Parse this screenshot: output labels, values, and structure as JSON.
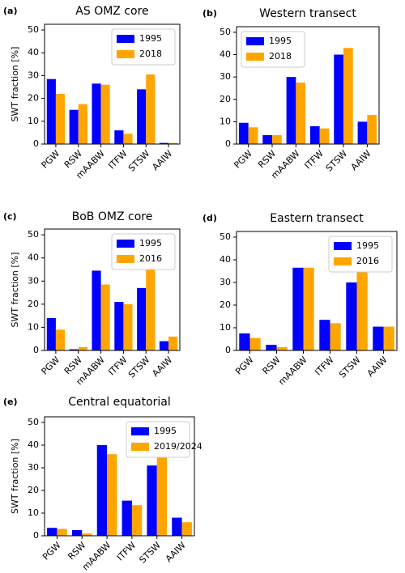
{
  "chart_data": [
    {
      "type": "bar",
      "label": "(a)",
      "title": "AS OMZ core",
      "y_label": "SWT fraction [%]",
      "categories": [
        "PGW",
        "RSW",
        "mAABW",
        "ITFW",
        "STSW",
        "AAIW"
      ],
      "series": [
        {
          "name": "1995",
          "color": "#0000ff",
          "values": [
            28.5,
            15,
            26.5,
            6,
            24,
            0.5
          ]
        },
        {
          "name": "2018",
          "color": "#ffa500",
          "values": [
            22,
            17.5,
            26,
            4.5,
            30.5,
            0.5
          ]
        }
      ],
      "ylim": [
        0,
        52.5
      ],
      "yticks": [
        0,
        10,
        20,
        30,
        40,
        50
      ],
      "legend": "upper right"
    },
    {
      "type": "bar",
      "label": "(b)",
      "title": "Western transect",
      "categories": [
        "PGW",
        "RSW",
        "mAABW",
        "ITFW",
        "STSW",
        "AAIW"
      ],
      "series": [
        {
          "name": "1995",
          "color": "#0000ff",
          "values": [
            9.5,
            4,
            30,
            8,
            40,
            10
          ]
        },
        {
          "name": "2018",
          "color": "#ffa500",
          "values": [
            7.5,
            4,
            27.5,
            7,
            43,
            13
          ]
        }
      ],
      "ylim": [
        0,
        52.5
      ],
      "yticks": [
        0,
        10,
        20,
        30,
        40,
        50
      ],
      "legend": "upper left"
    },
    {
      "type": "bar",
      "label": "(c)",
      "title": "BoB OMZ core",
      "y_label": "SWT fraction [%]",
      "categories": [
        "PGW",
        "RSW",
        "mAABW",
        "ITFW",
        "STSW",
        "AAIW"
      ],
      "series": [
        {
          "name": "1995",
          "color": "#0000ff",
          "values": [
            14,
            0.5,
            34.5,
            21,
            27,
            4
          ]
        },
        {
          "name": "2016",
          "color": "#ffa500",
          "values": [
            9,
            1.5,
            28.5,
            20,
            36,
            6
          ]
        }
      ],
      "ylim": [
        0,
        52.5
      ],
      "yticks": [
        0,
        10,
        20,
        30,
        40,
        50
      ],
      "legend": "upper right"
    },
    {
      "type": "bar",
      "label": "(d)",
      "title": "Eastern transect",
      "categories": [
        "PGW",
        "RSW",
        "mAABW",
        "ITFW",
        "STSW",
        "AAIW"
      ],
      "series": [
        {
          "name": "1995",
          "color": "#0000ff",
          "values": [
            7.5,
            2.5,
            36.5,
            13.5,
            30,
            10.5
          ]
        },
        {
          "name": "2016",
          "color": "#ffa500",
          "values": [
            5.5,
            1.5,
            36.5,
            12,
            35,
            10.5
          ]
        }
      ],
      "ylim": [
        0,
        52.5
      ],
      "yticks": [
        0,
        10,
        20,
        30,
        40,
        50
      ],
      "legend": "upper right"
    },
    {
      "type": "bar",
      "label": "(e)",
      "title": "Central equatorial",
      "y_label": "SWT fraction [%]",
      "categories": [
        "PGW",
        "RSW",
        "mAABW",
        "ITFW",
        "STSW",
        "AAIW"
      ],
      "series": [
        {
          "name": "1995",
          "color": "#0000ff",
          "values": [
            3.5,
            2.5,
            40,
            15.5,
            31,
            8
          ]
        },
        {
          "name": "2019/2024",
          "color": "#ffa500",
          "values": [
            3,
            1,
            36,
            13.5,
            40,
            6
          ]
        }
      ],
      "ylim": [
        0,
        52.5
      ],
      "yticks": [
        0,
        10,
        20,
        30,
        40,
        50
      ],
      "legend": "upper right"
    }
  ]
}
